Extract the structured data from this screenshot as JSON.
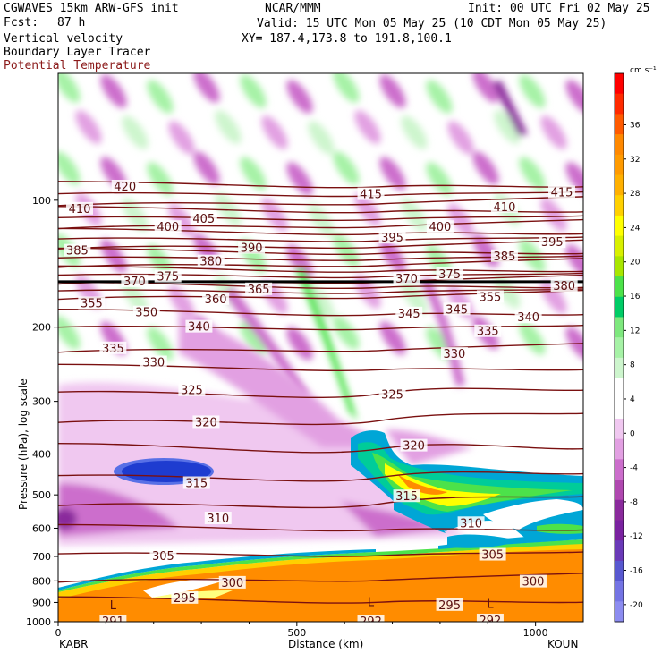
{
  "header": {
    "model": "CGWAVES 15km ARW-GFS init",
    "fcst_label": "Fcst:",
    "fcst_value": "87 h",
    "org": "NCAR/MMM",
    "init": "Init: 00 UTC Fri 02 May 25",
    "valid": "Valid: 15 UTC Mon 05 May 25 (10 CDT Mon 05 May 25)",
    "xy": "XY= 187.4,173.8 to 191.8,100.1",
    "fields": [
      "Vertical velocity",
      "Boundary Layer Tracer",
      "Potential Temperature"
    ]
  },
  "chart_data": {
    "type": "heatmap",
    "title": "",
    "xlabel": "Distance (km)",
    "ylabel": "Pressure (hPa), log scale",
    "x_ticks": [
      0,
      500,
      1000
    ],
    "xlim": [
      0,
      1100
    ],
    "y_ticks": [
      100,
      200,
      300,
      400,
      500,
      600,
      700,
      800,
      900,
      1000
    ],
    "ylim": [
      1000,
      50
    ],
    "y_scale": "log",
    "left_endpoint": "KABR",
    "right_endpoint": "KOUN",
    "colorbar": {
      "units": "cm s⁻¹",
      "labels": [
        "36",
        "32",
        "28",
        "24",
        "20",
        "16",
        "12",
        "8",
        "4",
        "0",
        "-4",
        "-8",
        "-12",
        "-16",
        "-20"
      ],
      "colors": [
        "#ff0000",
        "#ff2a00",
        "#ff5a00",
        "#ff8800",
        "#ff9a00",
        "#ffb000",
        "#ffd000",
        "#ffff00",
        "#d8f000",
        "#a8e600",
        "#4ce24a",
        "#00cc66",
        "#7ee87e",
        "#a6f2a6",
        "#cdf5cd",
        "#ffffff",
        "#ffffff",
        "#f0c8f0",
        "#e2a0e2",
        "#cc6ecc",
        "#b048b0",
        "#8a2a9c",
        "#7a22a0",
        "#6a3ab8",
        "#5858d0",
        "#7474e4",
        "#8c8cf0"
      ]
    },
    "potential_temperature_labels": [
      {
        "text": "420",
        "x": 140,
        "p": 93
      },
      {
        "text": "415",
        "x": 655,
        "p": 97
      },
      {
        "text": "415",
        "x": 1055,
        "p": 96
      },
      {
        "text": "410",
        "x": 45,
        "p": 105
      },
      {
        "text": "410",
        "x": 935,
        "p": 104
      },
      {
        "text": "405",
        "x": 305,
        "p": 111
      },
      {
        "text": "400",
        "x": 230,
        "p": 116
      },
      {
        "text": "400",
        "x": 800,
        "p": 116
      },
      {
        "text": "395",
        "x": 700,
        "p": 123
      },
      {
        "text": "395",
        "x": 1035,
        "p": 126
      },
      {
        "text": "390",
        "x": 405,
        "p": 130
      },
      {
        "text": "385",
        "x": 40,
        "p": 132
      },
      {
        "text": "385",
        "x": 935,
        "p": 136
      },
      {
        "text": "380",
        "x": 320,
        "p": 140
      },
      {
        "text": "375",
        "x": 230,
        "p": 152
      },
      {
        "text": "375",
        "x": 820,
        "p": 150
      },
      {
        "text": "370",
        "x": 160,
        "p": 156
      },
      {
        "text": "370",
        "x": 730,
        "p": 154
      },
      {
        "text": "380",
        "x": 1060,
        "p": 160
      },
      {
        "text": "365",
        "x": 420,
        "p": 163
      },
      {
        "text": "360",
        "x": 330,
        "p": 172
      },
      {
        "text": "355",
        "x": 70,
        "p": 176
      },
      {
        "text": "355",
        "x": 905,
        "p": 170
      },
      {
        "text": "350",
        "x": 185,
        "p": 185
      },
      {
        "text": "345",
        "x": 735,
        "p": 186
      },
      {
        "text": "345",
        "x": 835,
        "p": 182
      },
      {
        "text": "340",
        "x": 295,
        "p": 200
      },
      {
        "text": "340",
        "x": 985,
        "p": 190
      },
      {
        "text": "335",
        "x": 115,
        "p": 225
      },
      {
        "text": "335",
        "x": 900,
        "p": 205
      },
      {
        "text": "330",
        "x": 200,
        "p": 243
      },
      {
        "text": "330",
        "x": 830,
        "p": 232
      },
      {
        "text": "325",
        "x": 280,
        "p": 283
      },
      {
        "text": "325",
        "x": 700,
        "p": 290
      },
      {
        "text": "320",
        "x": 310,
        "p": 337
      },
      {
        "text": "320",
        "x": 745,
        "p": 383
      },
      {
        "text": "315",
        "x": 290,
        "p": 470
      },
      {
        "text": "315",
        "x": 730,
        "p": 505
      },
      {
        "text": "310",
        "x": 335,
        "p": 570
      },
      {
        "text": "310",
        "x": 865,
        "p": 585
      },
      {
        "text": "305",
        "x": 220,
        "p": 700
      },
      {
        "text": "305",
        "x": 910,
        "p": 695
      },
      {
        "text": "300",
        "x": 365,
        "p": 810
      },
      {
        "text": "300",
        "x": 995,
        "p": 805
      },
      {
        "text": "295",
        "x": 265,
        "p": 880
      },
      {
        "text": "295",
        "x": 820,
        "p": 915
      },
      {
        "text": "291",
        "x": 115,
        "p": 1000
      },
      {
        "text": "292",
        "x": 655,
        "p": 1000
      },
      {
        "text": "292",
        "x": 905,
        "p": 995
      }
    ],
    "low_markers": [
      {
        "text": "L",
        "x": 115,
        "p": 915
      },
      {
        "text": "L",
        "x": 655,
        "p": 900
      },
      {
        "text": "L",
        "x": 905,
        "p": 910
      }
    ]
  }
}
